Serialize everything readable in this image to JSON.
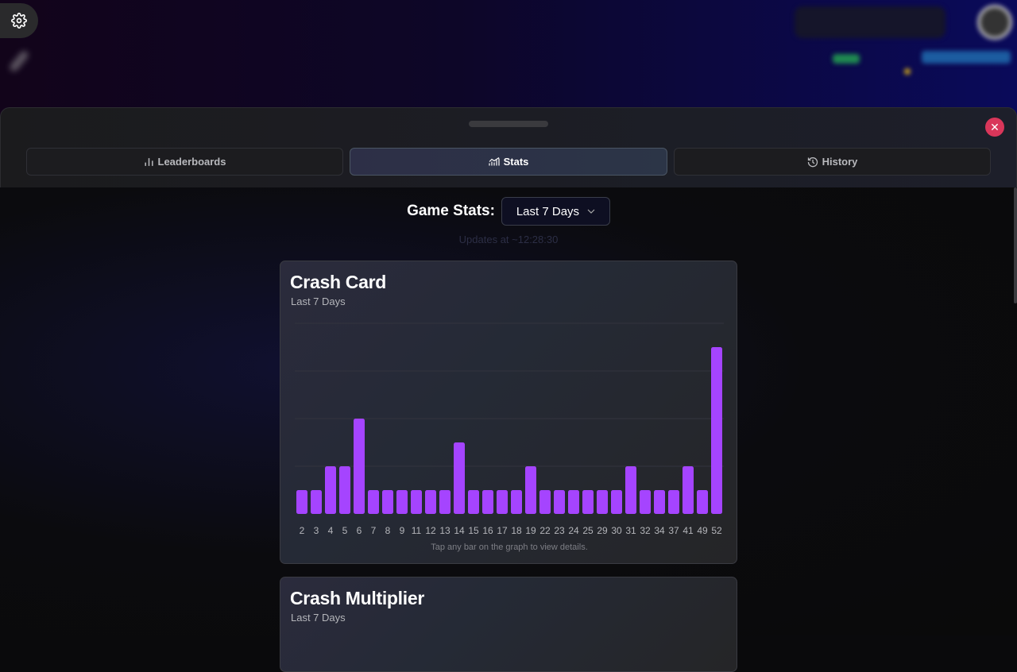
{
  "top_left": {
    "settings_icon": "gear-icon",
    "tool_icon": "wrench-icon"
  },
  "sheet": {
    "close_icon": "close-icon"
  },
  "tabs": [
    {
      "label": "Leaderboards",
      "icon": "bar-chart-icon",
      "active": false
    },
    {
      "label": "Stats",
      "icon": "trend-chart-icon",
      "active": true
    },
    {
      "label": "History",
      "icon": "history-icon",
      "active": false
    }
  ],
  "stats": {
    "title": "Game Stats:",
    "period_select": "Last 7 Days",
    "updates": "Updates at ~12:28:30"
  },
  "colors": {
    "bar": "#a544ff",
    "close": "#d9365a"
  },
  "cards": [
    {
      "title": "Crash Card",
      "subtitle": "Last 7 Days",
      "hint": "Tap any bar on the graph to view details."
    },
    {
      "title": "Crash Multiplier",
      "subtitle": "Last 7 Days"
    }
  ],
  "chart_data": {
    "type": "bar",
    "categories": [
      "2",
      "3",
      "4",
      "5",
      "6",
      "7",
      "8",
      "9",
      "11",
      "12",
      "13",
      "14",
      "15",
      "16",
      "17",
      "18",
      "19",
      "22",
      "23",
      "24",
      "25",
      "29",
      "30",
      "31",
      "32",
      "34",
      "37",
      "41",
      "49",
      "52"
    ],
    "values": [
      1,
      1,
      2,
      2,
      4,
      1,
      1,
      1,
      1,
      1,
      1,
      3,
      1,
      1,
      1,
      1,
      2,
      1,
      1,
      1,
      1,
      1,
      1,
      2,
      1,
      1,
      1,
      2,
      1,
      7
    ],
    "ylim": [
      0,
      8
    ],
    "grid": true
  }
}
